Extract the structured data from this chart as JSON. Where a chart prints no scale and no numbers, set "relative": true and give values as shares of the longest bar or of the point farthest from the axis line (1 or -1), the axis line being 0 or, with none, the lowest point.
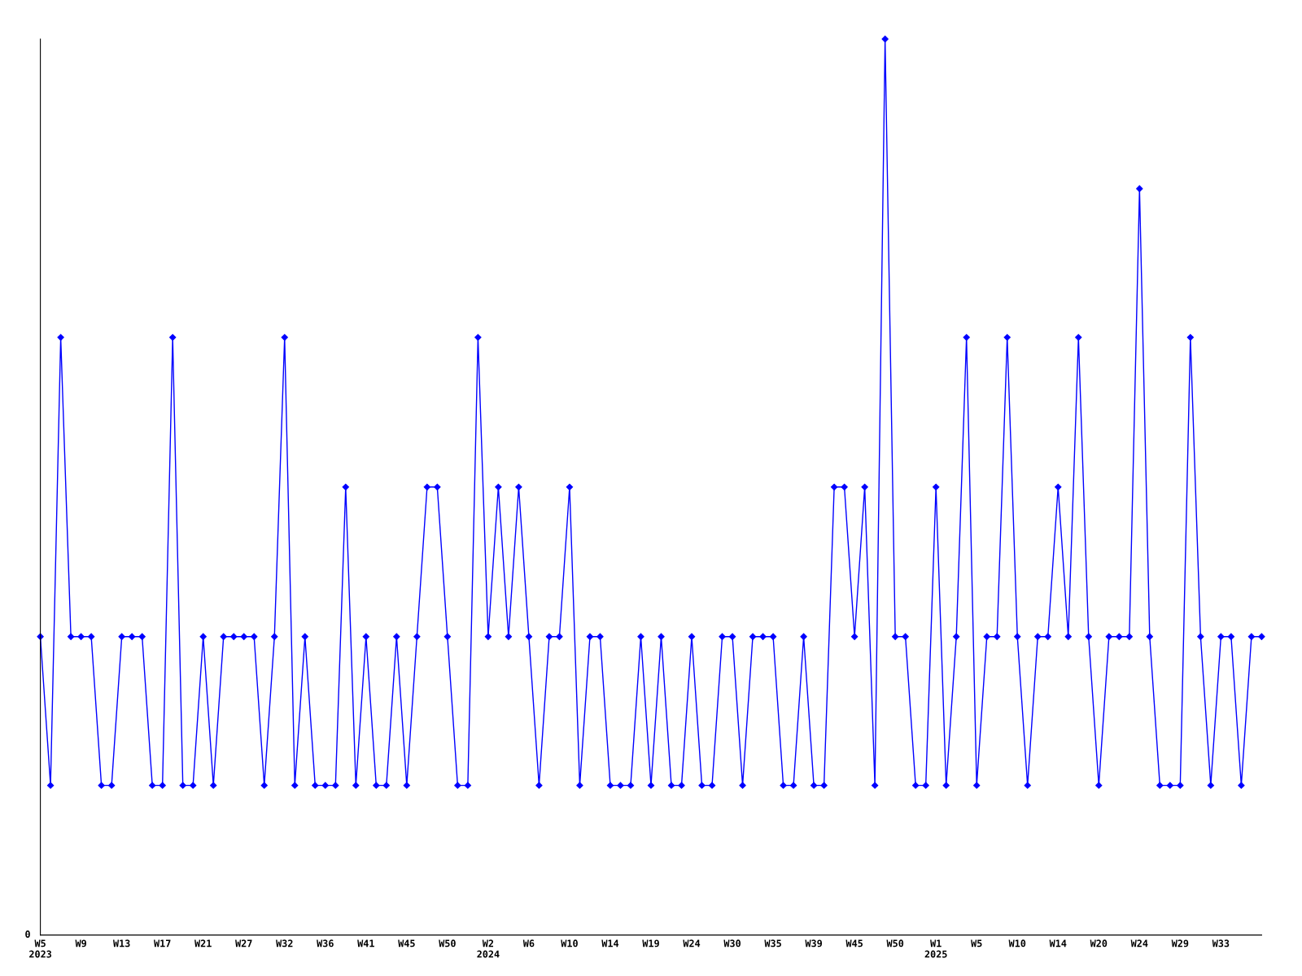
{
  "chart_data": {
    "type": "line",
    "relative": true,
    "marker": "diamond",
    "line_style": "solid",
    "grid": false,
    "legend": false,
    "categories": [
      "W5\n2023",
      null,
      null,
      null,
      "W9",
      null,
      null,
      null,
      "W13",
      null,
      null,
      null,
      "W17",
      null,
      null,
      null,
      "W21",
      null,
      null,
      null,
      "W27",
      null,
      null,
      null,
      "W32",
      null,
      null,
      null,
      "W36",
      null,
      null,
      null,
      "W41",
      null,
      null,
      null,
      "W45",
      null,
      null,
      null,
      "W50",
      null,
      null,
      null,
      "W2\n2024",
      null,
      null,
      null,
      "W6",
      null,
      null,
      null,
      "W10",
      null,
      null,
      null,
      "W14",
      null,
      null,
      null,
      "W19",
      null,
      null,
      null,
      "W24",
      null,
      null,
      null,
      "W30",
      null,
      null,
      null,
      "W35",
      null,
      null,
      null,
      "W39",
      null,
      null,
      null,
      "W45",
      null,
      null,
      null,
      "W50",
      null,
      null,
      null,
      "W1\n2025",
      null,
      null,
      null,
      "W5",
      null,
      null,
      null,
      "W10",
      null,
      null,
      null,
      "W14",
      null,
      null,
      null,
      "W20",
      null,
      null,
      null,
      "W24",
      null,
      null,
      null,
      "W29",
      null,
      null,
      null,
      "W33",
      null,
      null,
      null,
      null
    ],
    "series": [
      {
        "color": "#0000ff",
        "values": [
          0.333,
          0.167,
          0.667,
          0.333,
          0.333,
          0.333,
          0.167,
          0.167,
          0.333,
          0.333,
          0.333,
          0.167,
          0.167,
          0.667,
          0.167,
          0.167,
          0.333,
          0.167,
          0.333,
          0.333,
          0.333,
          0.333,
          0.167,
          0.333,
          0.667,
          0.167,
          0.333,
          0.167,
          0.167,
          0.167,
          0.5,
          0.167,
          0.333,
          0.167,
          0.167,
          0.333,
          0.167,
          0.333,
          0.5,
          0.5,
          0.333,
          0.167,
          0.167,
          0.667,
          0.333,
          0.5,
          0.333,
          0.5,
          0.333,
          0.167,
          0.333,
          0.333,
          0.5,
          0.167,
          0.333,
          0.333,
          0.167,
          0.167,
          0.167,
          0.333,
          0.167,
          0.333,
          0.167,
          0.167,
          0.333,
          0.167,
          0.167,
          0.333,
          0.333,
          0.167,
          0.333,
          0.333,
          0.333,
          0.167,
          0.167,
          0.333,
          0.167,
          0.167,
          0.5,
          0.5,
          0.333,
          0.5,
          0.167,
          1,
          0.333,
          0.333,
          0.167,
          0.167,
          0.5,
          0.167,
          0.333,
          0.667,
          0.167,
          0.333,
          0.333,
          0.667,
          0.333,
          0.167,
          0.333,
          0.333,
          0.5,
          0.333,
          0.667,
          0.333,
          0.167,
          0.333,
          0.333,
          0.333,
          0.833,
          0.333,
          0.167,
          0.167,
          0.167,
          0.667,
          0.333,
          0.167,
          0.333,
          0.333,
          0.167,
          0.333,
          0.333
        ]
      }
    ],
    "annotations": [
      "0"
    ]
  }
}
